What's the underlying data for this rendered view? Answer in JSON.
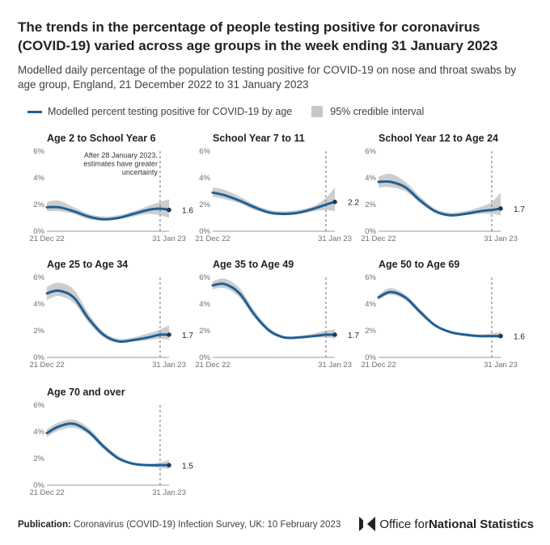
{
  "header": {
    "title": "The trends in the percentage of people testing positive for coronavirus (COVID-19) varied across age groups in the week ending 31 January 2023",
    "subtitle": "Modelled daily percentage of the population testing positive for COVID-19 on nose and throat swabs by age group, England, 21 December 2022 to 31 January 2023"
  },
  "legend": {
    "line_label": "Modelled percent testing positive for COVID-19 by age",
    "band_label": "95% credible interval"
  },
  "footer": {
    "publication_label": "Publication:",
    "publication_text": "Coronavirus (COVID-19) Infection Survey, UK: 10 February 2023"
  },
  "logo": {
    "text_regular": "Office for ",
    "text_bold": "National Statistics"
  },
  "colors": {
    "line": "#206095",
    "band": "#c8c8c8",
    "axis_text": "#6f6f6f",
    "title": "#222222"
  },
  "chart_data": [
    {
      "type": "line",
      "title": "Age 2 to School Year 6",
      "x": [
        "21 Dec 22",
        "25 Dec 22",
        "30 Dec 22",
        "4 Jan 23",
        "9 Jan 23",
        "14 Jan 23",
        "19 Jan 23",
        "24 Jan 23",
        "28 Jan 23",
        "31 Jan 23"
      ],
      "xticks": [
        "21 Dec 22",
        "31 Jan 23"
      ],
      "yticks": [
        "0%",
        "2%",
        "4%",
        "6%"
      ],
      "ylim": [
        0,
        6
      ],
      "series": [
        {
          "values": [
            1.8,
            1.8,
            1.5,
            1.1,
            0.9,
            1.0,
            1.3,
            1.6,
            1.7,
            1.6
          ]
        }
      ],
      "lower": [
        1.5,
        1.5,
        1.3,
        0.9,
        0.8,
        0.9,
        1.1,
        1.3,
        1.2,
        1.0
      ],
      "upper": [
        2.2,
        2.3,
        1.8,
        1.3,
        1.1,
        1.2,
        1.5,
        1.9,
        2.2,
        2.4
      ],
      "end_label": "1.6",
      "annotation": [
        "After 28 January 2023,",
        "estimates have greater",
        "uncertainty"
      ]
    },
    {
      "type": "line",
      "title": "School Year 7 to 11",
      "x": [
        "21 Dec 22",
        "25 Dec 22",
        "30 Dec 22",
        "4 Jan 23",
        "9 Jan 23",
        "14 Jan 23",
        "19 Jan 23",
        "24 Jan 23",
        "28 Jan 23",
        "31 Jan 23"
      ],
      "xticks": [
        "21 Dec 22",
        "31 Jan 23"
      ],
      "yticks": [
        "0%",
        "2%",
        "4%",
        "6%"
      ],
      "ylim": [
        0,
        6
      ],
      "series": [
        {
          "values": [
            2.9,
            2.7,
            2.3,
            1.8,
            1.4,
            1.3,
            1.4,
            1.7,
            2.0,
            2.2
          ]
        }
      ],
      "lower": [
        2.6,
        2.4,
        2.1,
        1.6,
        1.3,
        1.2,
        1.3,
        1.5,
        1.6,
        1.5
      ],
      "upper": [
        3.3,
        3.1,
        2.6,
        2.0,
        1.6,
        1.5,
        1.6,
        1.9,
        2.5,
        3.3
      ],
      "end_label": "2.2"
    },
    {
      "type": "line",
      "title": "School Year 12 to Age 24",
      "x": [
        "21 Dec 22",
        "25 Dec 22",
        "30 Dec 22",
        "4 Jan 23",
        "9 Jan 23",
        "14 Jan 23",
        "19 Jan 23",
        "24 Jan 23",
        "28 Jan 23",
        "31 Jan 23"
      ],
      "xticks": [
        "21 Dec 22",
        "31 Jan 23"
      ],
      "yticks": [
        "0%",
        "2%",
        "4%",
        "6%"
      ],
      "ylim": [
        0,
        6
      ],
      "series": [
        {
          "values": [
            3.7,
            3.7,
            3.3,
            2.3,
            1.5,
            1.2,
            1.3,
            1.5,
            1.6,
            1.7
          ]
        }
      ],
      "lower": [
        3.3,
        3.3,
        3.0,
        2.1,
        1.4,
        1.1,
        1.2,
        1.3,
        1.3,
        1.2
      ],
      "upper": [
        4.1,
        4.3,
        3.7,
        2.6,
        1.7,
        1.4,
        1.5,
        1.8,
        2.2,
        2.9
      ],
      "end_label": "1.7"
    },
    {
      "type": "line",
      "title": "Age 25 to Age 34",
      "x": [
        "21 Dec 22",
        "25 Dec 22",
        "30 Dec 22",
        "4 Jan 23",
        "9 Jan 23",
        "14 Jan 23",
        "19 Jan 23",
        "24 Jan 23",
        "28 Jan 23",
        "31 Jan 23"
      ],
      "xticks": [
        "21 Dec 22",
        "31 Jan 23"
      ],
      "yticks": [
        "0%",
        "2%",
        "4%",
        "6%"
      ],
      "ylim": [
        0,
        6
      ],
      "series": [
        {
          "values": [
            4.8,
            5.0,
            4.5,
            2.9,
            1.7,
            1.2,
            1.3,
            1.5,
            1.7,
            1.7
          ]
        }
      ],
      "lower": [
        4.3,
        4.6,
        4.1,
        2.6,
        1.5,
        1.1,
        1.2,
        1.3,
        1.4,
        1.3
      ],
      "upper": [
        5.3,
        5.6,
        5.1,
        3.3,
        1.9,
        1.4,
        1.5,
        1.8,
        2.1,
        2.4
      ],
      "end_label": "1.7"
    },
    {
      "type": "line",
      "title": "Age 35 to Age 49",
      "x": [
        "21 Dec 22",
        "25 Dec 22",
        "30 Dec 22",
        "4 Jan 23",
        "9 Jan 23",
        "14 Jan 23",
        "19 Jan 23",
        "24 Jan 23",
        "28 Jan 23",
        "31 Jan 23"
      ],
      "xticks": [
        "21 Dec 22",
        "31 Jan 23"
      ],
      "yticks": [
        "0%",
        "2%",
        "4%",
        "6%"
      ],
      "ylim": [
        0,
        6
      ],
      "series": [
        {
          "values": [
            5.4,
            5.5,
            4.8,
            3.2,
            2.0,
            1.5,
            1.5,
            1.6,
            1.7,
            1.7
          ]
        }
      ],
      "lower": [
        5.1,
        5.2,
        4.5,
        3.0,
        1.9,
        1.4,
        1.4,
        1.5,
        1.5,
        1.4
      ],
      "upper": [
        5.7,
        5.9,
        5.2,
        3.5,
        2.2,
        1.6,
        1.6,
        1.8,
        2.0,
        2.1
      ],
      "end_label": "1.7"
    },
    {
      "type": "line",
      "title": "Age 50 to Age 69",
      "x": [
        "21 Dec 22",
        "25 Dec 22",
        "30 Dec 22",
        "4 Jan 23",
        "9 Jan 23",
        "14 Jan 23",
        "19 Jan 23",
        "24 Jan 23",
        "28 Jan 23",
        "31 Jan 23"
      ],
      "xticks": [
        "21 Dec 22",
        "31 Jan 23"
      ],
      "yticks": [
        "0%",
        "2%",
        "4%",
        "6%"
      ],
      "ylim": [
        0,
        6
      ],
      "series": [
        {
          "values": [
            4.5,
            4.9,
            4.5,
            3.4,
            2.4,
            1.9,
            1.7,
            1.6,
            1.6,
            1.6
          ]
        }
      ],
      "lower": [
        4.3,
        4.7,
        4.3,
        3.2,
        2.3,
        1.8,
        1.6,
        1.5,
        1.5,
        1.4
      ],
      "upper": [
        4.7,
        5.2,
        4.7,
        3.6,
        2.5,
        2.0,
        1.8,
        1.7,
        1.8,
        1.9
      ],
      "end_label": "1.6"
    },
    {
      "type": "line",
      "title": "Age 70 and over",
      "x": [
        "21 Dec 22",
        "25 Dec 22",
        "30 Dec 22",
        "4 Jan 23",
        "9 Jan 23",
        "14 Jan 23",
        "19 Jan 23",
        "24 Jan 23",
        "28 Jan 23",
        "31 Jan 23"
      ],
      "xticks": [
        "21 Dec 22",
        "31 Jan 23"
      ],
      "yticks": [
        "0%",
        "2%",
        "4%",
        "6%"
      ],
      "ylim": [
        0,
        6
      ],
      "series": [
        {
          "values": [
            3.9,
            4.4,
            4.6,
            4.0,
            2.9,
            2.0,
            1.6,
            1.5,
            1.5,
            1.5
          ]
        }
      ],
      "lower": [
        3.6,
        4.1,
        4.3,
        3.8,
        2.7,
        1.9,
        1.5,
        1.4,
        1.3,
        1.2
      ],
      "upper": [
        4.2,
        4.7,
        4.9,
        4.3,
        3.1,
        2.2,
        1.7,
        1.6,
        1.7,
        1.9
      ],
      "end_label": "1.5"
    }
  ]
}
